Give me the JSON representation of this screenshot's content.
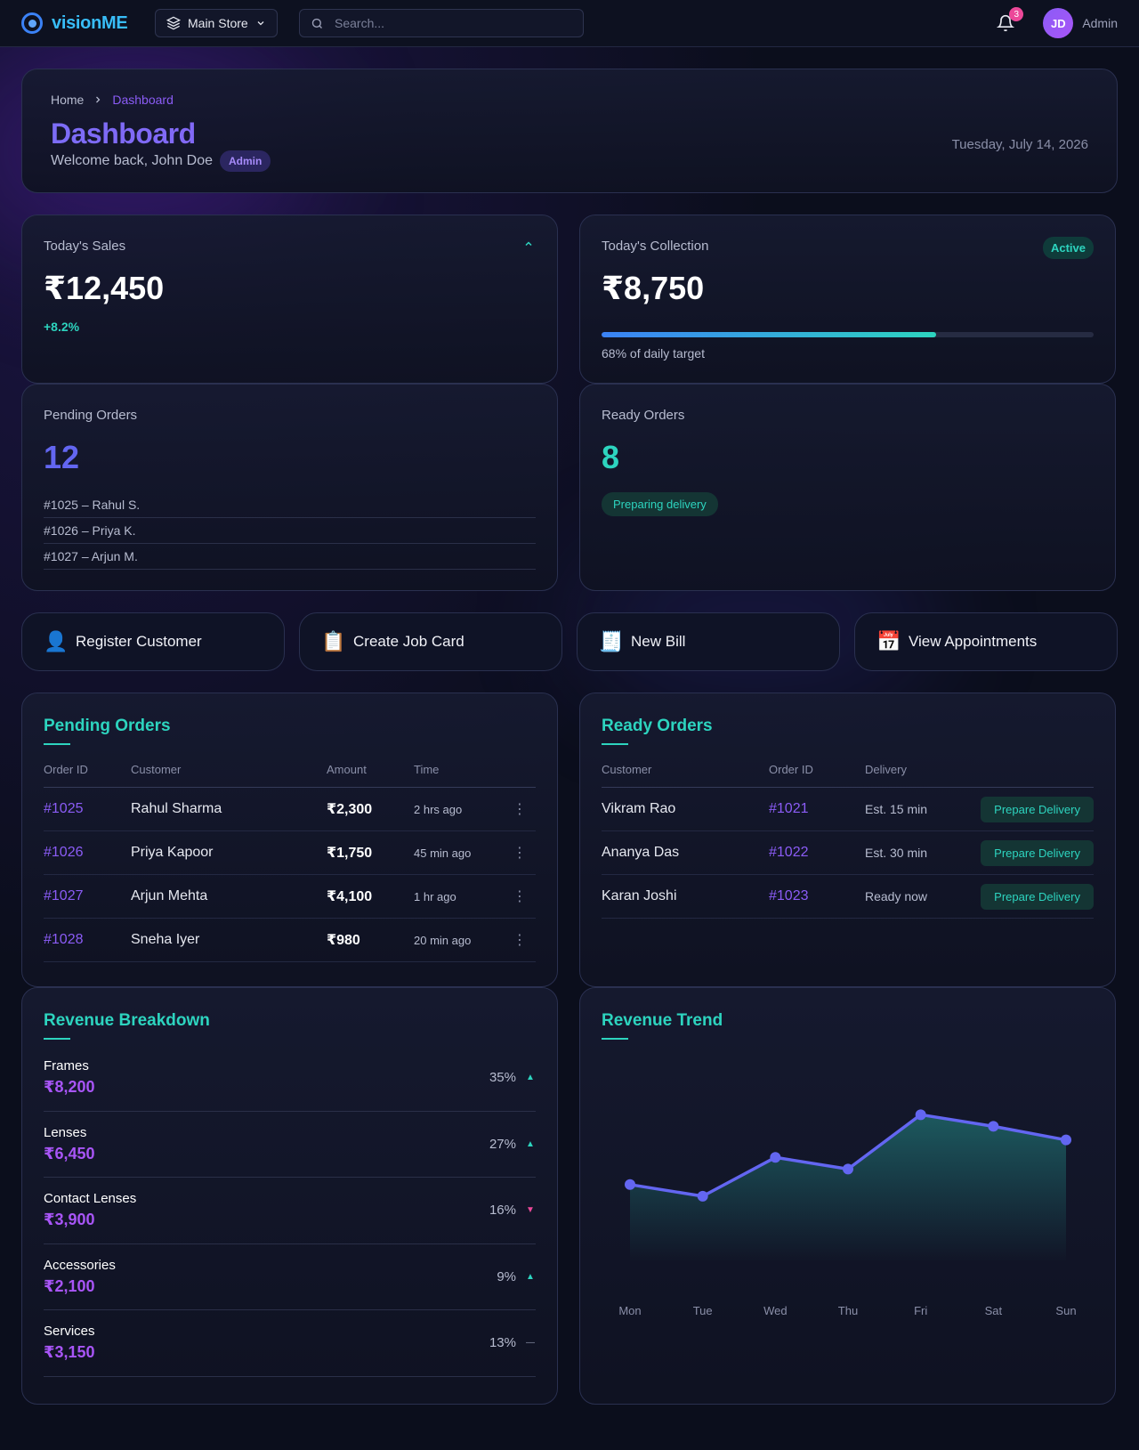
{
  "brand": {
    "name": "visionME"
  },
  "topbar": {
    "store": "Main Store",
    "search_placeholder": "Search...",
    "notifications": "3",
    "user_initials": "JD",
    "user_role": "Admin"
  },
  "header": {
    "breadcrumb": [
      "Home",
      "Dashboard"
    ],
    "title": "Dashboard",
    "welcome": "Welcome back, John Doe",
    "role_badge": "Admin",
    "date": "Tuesday, July 14, 2026"
  },
  "stats": {
    "sales": {
      "label": "Today's Sales",
      "value": "₹12,450",
      "trend": "+8.2%"
    },
    "collection": {
      "label": "Today's Collection",
      "value": "₹8,750",
      "status": "Active",
      "progress": 0.68,
      "progress_text": "68% of daily target"
    },
    "pending": {
      "label": "Pending Orders",
      "count": "12",
      "items": [
        "#1025 – Rahul S.",
        "#1026 – Priya K.",
        "#1027 – Arjun M."
      ]
    },
    "ready": {
      "label": "Ready Orders",
      "count": "8",
      "status": "Preparing delivery"
    }
  },
  "actions": [
    {
      "icon": "👤",
      "label": "Register Customer"
    },
    {
      "icon": "📋",
      "label": "Create Job Card"
    },
    {
      "icon": "🧾",
      "label": "New Bill"
    },
    {
      "icon": "📅",
      "label": "View Appointments"
    }
  ],
  "pending_orders": {
    "title": "Pending Orders",
    "columns": [
      "Order ID",
      "Customer",
      "Amount",
      "Time"
    ],
    "rows": [
      {
        "id": "#1025",
        "customer": "Rahul Sharma",
        "amount": "₹2,300",
        "time": "2 hrs ago"
      },
      {
        "id": "#1026",
        "customer": "Priya Kapoor",
        "amount": "₹1,750",
        "time": "45 min ago"
      },
      {
        "id": "#1027",
        "customer": "Arjun Mehta",
        "amount": "₹4,100",
        "time": "1 hr ago"
      },
      {
        "id": "#1028",
        "customer": "Sneha Iyer",
        "amount": "₹980",
        "time": "20 min ago"
      }
    ]
  },
  "ready_orders": {
    "title": "Ready Orders",
    "columns": [
      "Customer",
      "Order ID",
      "Delivery"
    ],
    "action_label": "Prepare Delivery",
    "rows": [
      {
        "customer": "Vikram Rao",
        "id": "#1021",
        "delivery": "Est. 15 min"
      },
      {
        "customer": "Ananya Das",
        "id": "#1022",
        "delivery": "Est. 30 min"
      },
      {
        "customer": "Karan Joshi",
        "id": "#1023",
        "delivery": "Ready now"
      }
    ]
  },
  "revenue_breakdown": {
    "title": "Revenue Breakdown",
    "items": [
      {
        "name": "Frames",
        "amount": "₹8,200",
        "pct": "35%",
        "trend": "up"
      },
      {
        "name": "Lenses",
        "amount": "₹6,450",
        "pct": "27%",
        "trend": "up"
      },
      {
        "name": "Contact Lenses",
        "amount": "₹3,900",
        "pct": "16%",
        "trend": "down"
      },
      {
        "name": "Accessories",
        "amount": "₹2,100",
        "pct": "9%",
        "trend": "up"
      },
      {
        "name": "Services",
        "amount": "₹3,150",
        "pct": "13%",
        "trend": "flat"
      }
    ]
  },
  "chart_data": {
    "type": "area",
    "title": "Revenue Trend",
    "categories": [
      "Mon",
      "Tue",
      "Wed",
      "Thu",
      "Fri",
      "Sat",
      "Sun"
    ],
    "values": [
      40,
      34,
      54,
      48,
      76,
      70,
      63
    ],
    "ylim": [
      0,
      100
    ],
    "grid": false,
    "line_color": "#6366f1",
    "fill_color": "#2dd4bf"
  }
}
